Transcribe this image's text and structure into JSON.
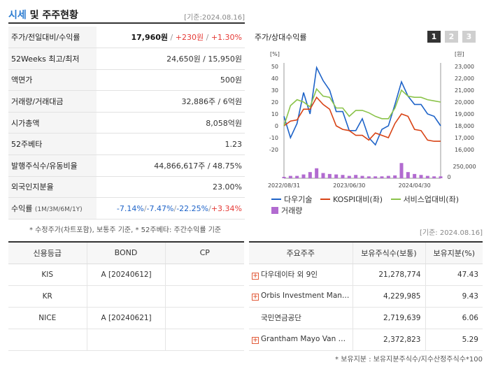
{
  "header": {
    "title_accent": "시세",
    "title_rest": " 및 주주현황",
    "basedate": "[기준:2024.08.16]"
  },
  "info_rows": [
    {
      "label": "주가/전일대비/수익률"
    },
    {
      "label": "52Weeks 최고/최저",
      "value": "24,650원 / 15,950원"
    },
    {
      "label": "액면가",
      "value": "500원"
    },
    {
      "label": "거래량/거래대금",
      "value": "32,886주 / 6억원"
    },
    {
      "label": "시가총액",
      "value": "8,058억원"
    },
    {
      "label": "52주베타",
      "value": "1.23"
    },
    {
      "label": "발행주식수/유동비율",
      "value": "44,866,617주 / 48.75%"
    },
    {
      "label": "외국인지분율",
      "value": "23.00%"
    },
    {
      "label": "수익률",
      "label_small": "(1M/3M/6M/1Y)"
    }
  ],
  "price": {
    "close": "17,960원",
    "change": "+230원",
    "rate": "+1.30%"
  },
  "returns": {
    "m1": "-7.14%",
    "m3": "-7.47%",
    "m6": "-22.25%",
    "y1": "+3.34%"
  },
  "note1": "* 수정주가(차트포함), 보통주 기준, * 52주베타: 주간수익률 기준",
  "chart": {
    "title": "주가/상대수익률",
    "buttons": [
      "1",
      "2",
      "3"
    ],
    "left_unit": "[%]",
    "right_unit": "[원]",
    "legend": {
      "s1": "다우기술",
      "s2": "KOSPI대비(좌)",
      "s3": "서비스업대비(좌)",
      "vol": "거래량"
    }
  },
  "chart_data": {
    "type": "line",
    "x": [
      "2022/08",
      "2022/09",
      "2022/10",
      "2022/11",
      "2022/12",
      "2023/01",
      "2023/02",
      "2023/03",
      "2023/04",
      "2023/05",
      "2023/06",
      "2023/07",
      "2023/08",
      "2023/09",
      "2023/10",
      "2023/11",
      "2023/12",
      "2024/01",
      "2024/02",
      "2024/03",
      "2024/04",
      "2024/05",
      "2024/06",
      "2024/07",
      "2024/08"
    ],
    "x_tick_labels": [
      "2022/08/31",
      "2023/06/30",
      "2024/04/30"
    ],
    "y_left": {
      "unit": "[%]",
      "ylim": [
        -20,
        50
      ],
      "ticks": [
        50,
        40,
        30,
        20,
        10,
        0,
        -10,
        -20
      ]
    },
    "y_right": {
      "unit": "[원]",
      "ylim": [
        16000,
        23000
      ],
      "ticks": [
        "23,000",
        "22,000",
        "21,000",
        "20,000",
        "19,000",
        "18,000",
        "17,000",
        "16,000"
      ]
    },
    "y_volume": {
      "ticks": [
        "250,000",
        "0"
      ]
    },
    "series": [
      {
        "name": "다우기술",
        "color": "#1e63c8",
        "axis": "left",
        "values": [
          8,
          -10,
          2,
          28,
          10,
          49,
          38,
          30,
          12,
          12,
          -4,
          -4,
          6,
          -10,
          -16,
          -3,
          0,
          18,
          37,
          25,
          18,
          18,
          10,
          8,
          0
        ]
      },
      {
        "name": "KOSPI대비(좌)",
        "color": "#d84315",
        "axis": "left",
        "values": [
          0,
          4,
          5,
          14,
          14,
          24,
          18,
          14,
          0,
          -3,
          -4,
          -8,
          -8,
          -12,
          -6,
          -8,
          -10,
          2,
          10,
          8,
          -3,
          -4,
          -12,
          -13,
          -13
        ]
      },
      {
        "name": "서비스업대비(좌)",
        "color": "#8bc34a",
        "axis": "left",
        "values": [
          0,
          17,
          22,
          20,
          16,
          31,
          25,
          24,
          15,
          15,
          8,
          13,
          13,
          11,
          8,
          6,
          6,
          15,
          30,
          25,
          24,
          24,
          22,
          21,
          20
        ]
      },
      {
        "name": "거래량",
        "color": "#b26bd0",
        "type": "bar",
        "values": [
          30000,
          50000,
          50000,
          80000,
          130000,
          210000,
          110000,
          90000,
          80000,
          70000,
          50000,
          70000,
          50000,
          40000,
          40000,
          40000,
          50000,
          60000,
          320000,
          130000,
          90000,
          70000,
          50000,
          40000,
          40000
        ]
      }
    ],
    "grid": false
  },
  "basedate2": "[기준: 2024.08.16]",
  "credit": {
    "headers": [
      "신용등급",
      "BOND",
      "CP"
    ],
    "rows": [
      [
        "KIS",
        "A [20240612]",
        ""
      ],
      [
        "KR",
        "",
        ""
      ],
      [
        "NICE",
        "A [20240621]",
        ""
      ],
      [
        "",
        "",
        ""
      ]
    ]
  },
  "holders": {
    "headers": [
      "주요주주",
      "보유주식수(보통)",
      "보유지분(%)"
    ],
    "rows": [
      {
        "name": "다우데이타 외 9인",
        "shares": "21,278,774",
        "pct": "47.43",
        "plus": true
      },
      {
        "name": "Orbis Investment Man…",
        "shares": "4,229,985",
        "pct": "9.43",
        "plus": true
      },
      {
        "name": "국민연금공단",
        "shares": "2,719,639",
        "pct": "6.06",
        "plus": false
      },
      {
        "name": "Grantham Mayo Van …",
        "shares": "2,372,823",
        "pct": "5.29",
        "plus": true
      }
    ]
  },
  "note2": "* 보유지분 : 보유지분주식수/지수산정주식수*100"
}
